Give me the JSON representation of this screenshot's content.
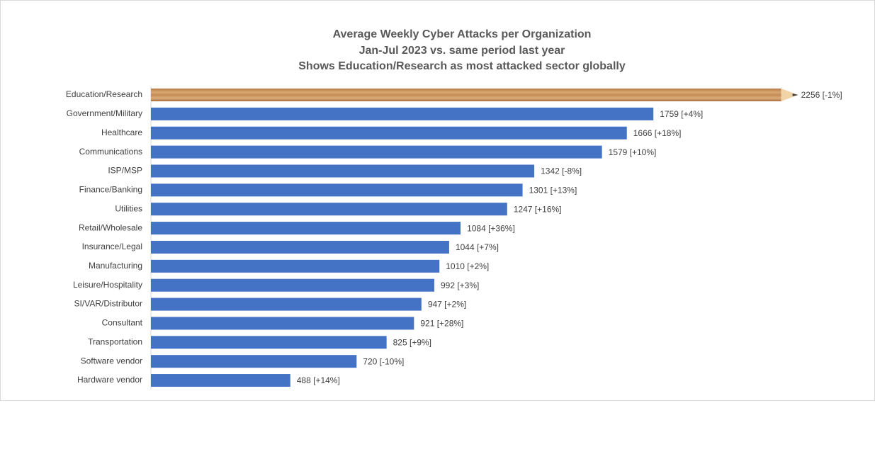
{
  "chart_data": {
    "type": "barh",
    "title": [
      "Average Weekly Cyber Attacks per Organization",
      "Jan-Jul 2023 vs. same period last year",
      "Shows Education/Research as most attacked sector globally"
    ],
    "categories": [
      "Education/Research",
      "Government/Military",
      "Healthcare",
      "Communications",
      "ISP/MSP",
      "Finance/Banking",
      "Utilities",
      "Retail/Wholesale",
      "Insurance/Legal",
      "Manufacturing",
      "Leisure/Hospitality",
      "SI/VAR/Distributor",
      "Consultant",
      "Transportation",
      "Software vendor",
      "Hardware vendor"
    ],
    "values": [
      2256,
      1759,
      1666,
      1579,
      1342,
      1301,
      1247,
      1084,
      1044,
      1010,
      992,
      947,
      921,
      825,
      720,
      488
    ],
    "value_labels": [
      "2256 [-1%]",
      "1759 [+4%]",
      "1666 [+18%]",
      "1579 [+10%]",
      "1342 [-8%]",
      "1301 [+13%]",
      "1247 [+16%]",
      "1084 [+36%]",
      "1044 [+7%]",
      "1010 [+2%]",
      "992 [+3%]",
      "947 [+2%]",
      "921 [+28%]",
      "825 [+9%]",
      "720 [-10%]",
      "488 [+14%]"
    ],
    "colors": [
      "#c8945c",
      "#4472c4",
      "#4472c4",
      "#4472c4",
      "#4472c4",
      "#4472c4",
      "#4472c4",
      "#4472c4",
      "#4472c4",
      "#4472c4",
      "#4472c4",
      "#4472c4",
      "#4472c4",
      "#4472c4",
      "#4472c4",
      "#4472c4"
    ],
    "xlim": [
      0,
      2500
    ]
  }
}
